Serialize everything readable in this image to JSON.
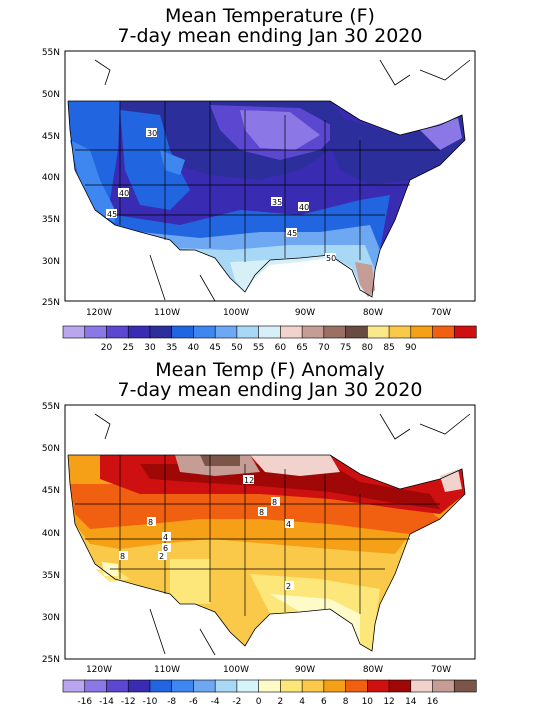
{
  "panel1": {
    "title_line1": "Mean Temperature (F)",
    "title_line2": "7-day mean ending Jan 30 2020",
    "contour_labels": [
      "30",
      "40",
      "45",
      "35",
      "40",
      "45",
      "50"
    ],
    "colorbar": {
      "labels": [
        "20",
        "25",
        "30",
        "35",
        "40",
        "45",
        "50",
        "55",
        "60",
        "65",
        "70",
        "75",
        "80",
        "85",
        "90"
      ],
      "colors": [
        "#b9a6ef",
        "#8b78e6",
        "#5c47d0",
        "#3a2bb3",
        "#2c2e9c",
        "#2166e0",
        "#3e86f0",
        "#6ea7f2",
        "#a8d8f5",
        "#d7f0f8",
        "#f1d2cc",
        "#c59d94",
        "#9b7064",
        "#6b4a41",
        "#fbe88a",
        "#fbc94a",
        "#f5a016",
        "#f06010",
        "#cf1010"
      ]
    }
  },
  "panel2": {
    "title_line1": "Mean Temp (F) Anomaly",
    "title_line2": "7-day mean ending Jan 30 2020",
    "contour_labels": [
      "12",
      "8",
      "8",
      "4",
      "8",
      "6",
      "4",
      "2",
      "8",
      "2"
    ],
    "colorbar": {
      "labels": [
        "-16",
        "-14",
        "-12",
        "-10",
        "-8",
        "-6",
        "-4",
        "-2",
        "0",
        "2",
        "4",
        "6",
        "8",
        "10",
        "12",
        "14",
        "16"
      ],
      "colors": [
        "#b9a6ef",
        "#8b78e6",
        "#5c47d0",
        "#3a2bb3",
        "#2166e0",
        "#3e86f0",
        "#6ea7f2",
        "#a8d8f5",
        "#d7f5f8",
        "#fffbc8",
        "#fde77a",
        "#fbc94a",
        "#f5a016",
        "#f06010",
        "#cf1010",
        "#a00808",
        "#f1d2cc",
        "#c59d94",
        "#7a5548"
      ]
    }
  },
  "axes": {
    "lat_labels": [
      "55N",
      "50N",
      "45N",
      "40N",
      "35N",
      "30N",
      "25N"
    ],
    "lon_labels": [
      "120W",
      "110W",
      "100W",
      "90W",
      "80W",
      "70W"
    ]
  }
}
